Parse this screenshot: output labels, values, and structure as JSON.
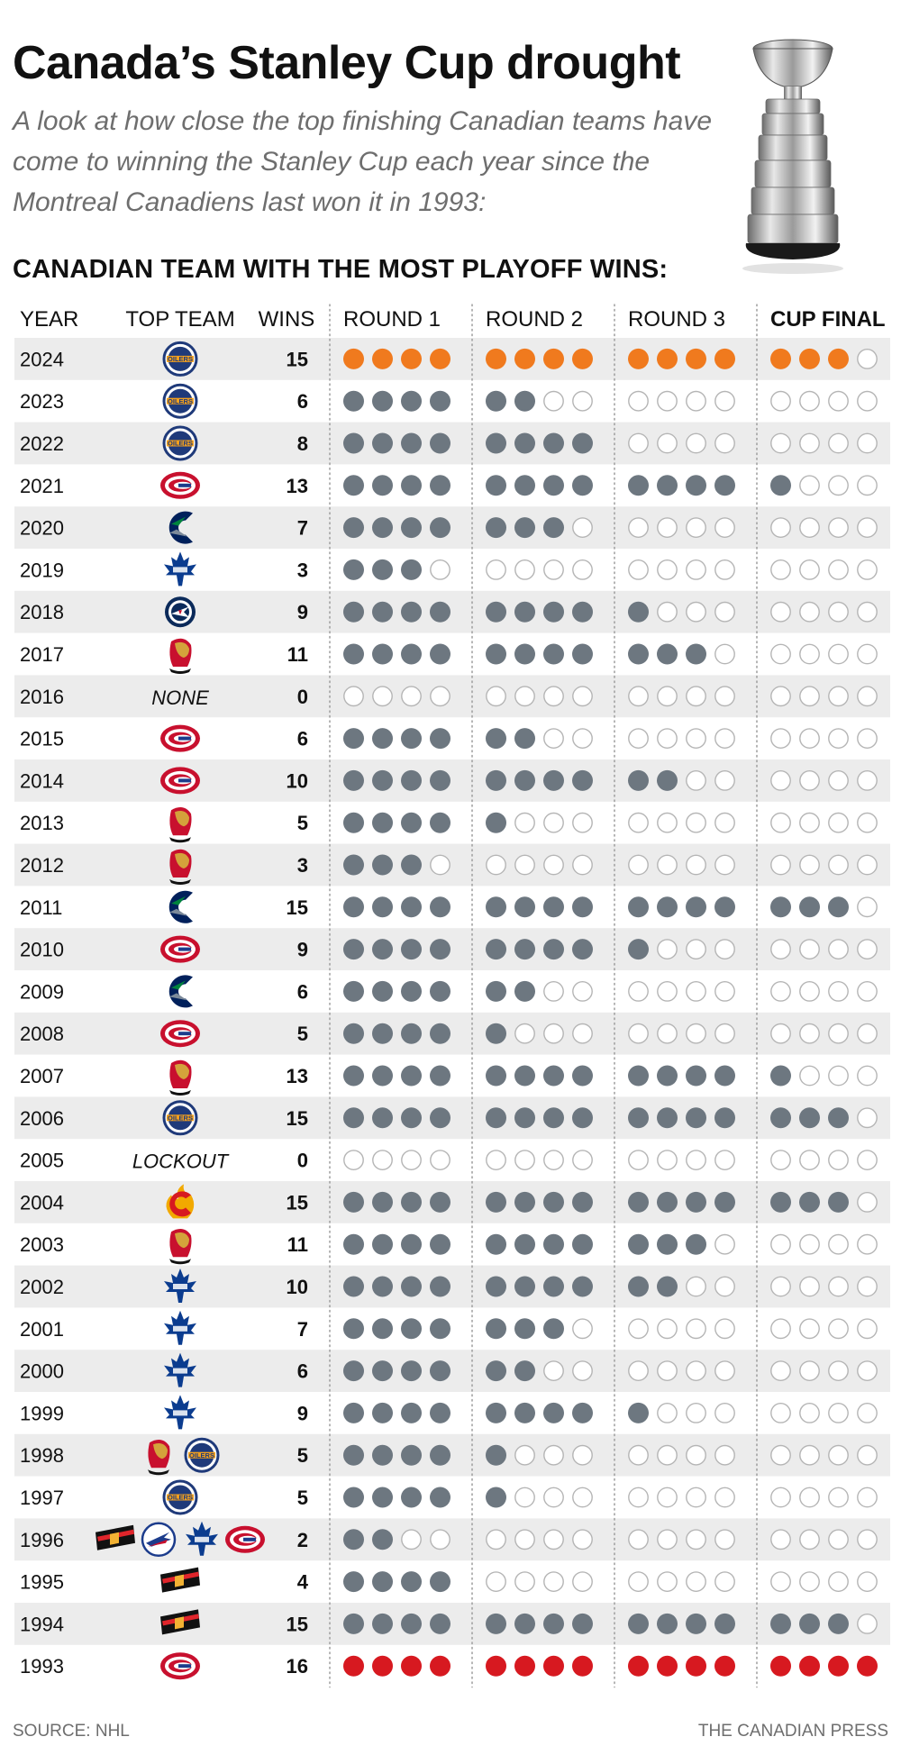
{
  "title": "Canada’s Stanley Cup drought",
  "subtitle": "A look at how close the top finishing Canadian teams have come to winning the Stanley Cup each year since the Montreal Canadiens last won it in 1993:",
  "subhead": "CANADIAN TEAM WITH THE MOST PLAYOFF WINS:",
  "source": "SOURCE: NHL",
  "credit": "THE CANADIAN PRESS",
  "colors": {
    "filled": "#6d7780",
    "current": "#f07a1e",
    "champion": "#d71920",
    "empty_stroke": "#b5b5b5",
    "stripe": "#ececec",
    "text_muted": "#6e6e6e"
  },
  "team_logos": {
    "oilers": {
      "primary": "#1f3a7a",
      "secondary": "#f3a01d",
      "text": "OILERS"
    },
    "canadiens": {
      "primary": "#c8102e",
      "secondary": "#1c3c8c",
      "text": "CH"
    },
    "canucks": {
      "primary": "#00205b",
      "secondary": "#00843d"
    },
    "maple-leafs": {
      "primary": "#0b3c8f",
      "text": "TORONTO MAPLE LEAFS"
    },
    "jets": {
      "primary": "#0b2a5a",
      "secondary": "#c8102e"
    },
    "senators": {
      "primary": "#c8102e",
      "secondary": "#d4a23b"
    },
    "flames": {
      "primary": "#d71920",
      "secondary": "#f2a900"
    },
    "canucks-retro": {
      "primary": "#111111",
      "secondary": "#e0252b"
    },
    "jets-retro": {
      "primary": "#1c3c8c",
      "secondary": "#c8102e"
    }
  },
  "chart_data": {
    "type": "table",
    "columns": [
      "YEAR",
      "TOP TEAM",
      "WINS",
      "ROUND 1",
      "ROUND 2",
      "ROUND 3",
      "CUP FINAL"
    ],
    "highlight_column": "CUP FINAL",
    "max_wins_per_round": 4,
    "rows": [
      {
        "year": "2024",
        "team_icons": [
          "oilers"
        ],
        "wins": 15,
        "rounds": [
          4,
          4,
          4,
          3
        ],
        "status": "current"
      },
      {
        "year": "2023",
        "team_icons": [
          "oilers"
        ],
        "wins": 6,
        "rounds": [
          4,
          2,
          0,
          0
        ]
      },
      {
        "year": "2022",
        "team_icons": [
          "oilers"
        ],
        "wins": 8,
        "rounds": [
          4,
          4,
          0,
          0
        ]
      },
      {
        "year": "2021",
        "team_icons": [
          "canadiens"
        ],
        "wins": 13,
        "rounds": [
          4,
          4,
          4,
          1
        ]
      },
      {
        "year": "2020",
        "team_icons": [
          "canucks"
        ],
        "wins": 7,
        "rounds": [
          4,
          3,
          0,
          0
        ]
      },
      {
        "year": "2019",
        "team_icons": [
          "maple-leafs"
        ],
        "wins": 3,
        "rounds": [
          3,
          0,
          0,
          0
        ]
      },
      {
        "year": "2018",
        "team_icons": [
          "jets"
        ],
        "wins": 9,
        "rounds": [
          4,
          4,
          1,
          0
        ]
      },
      {
        "year": "2017",
        "team_icons": [
          "senators"
        ],
        "wins": 11,
        "rounds": [
          4,
          4,
          3,
          0
        ]
      },
      {
        "year": "2016",
        "team_text": "NONE",
        "team_icons": [],
        "wins": 0,
        "rounds": [
          0,
          0,
          0,
          0
        ]
      },
      {
        "year": "2015",
        "team_icons": [
          "canadiens"
        ],
        "wins": 6,
        "rounds": [
          4,
          2,
          0,
          0
        ]
      },
      {
        "year": "2014",
        "team_icons": [
          "canadiens"
        ],
        "wins": 10,
        "rounds": [
          4,
          4,
          2,
          0
        ]
      },
      {
        "year": "2013",
        "team_icons": [
          "senators"
        ],
        "wins": 5,
        "rounds": [
          4,
          1,
          0,
          0
        ]
      },
      {
        "year": "2012",
        "team_icons": [
          "senators"
        ],
        "wins": 3,
        "rounds": [
          3,
          0,
          0,
          0
        ]
      },
      {
        "year": "2011",
        "team_icons": [
          "canucks"
        ],
        "wins": 15,
        "rounds": [
          4,
          4,
          4,
          3
        ]
      },
      {
        "year": "2010",
        "team_icons": [
          "canadiens"
        ],
        "wins": 9,
        "rounds": [
          4,
          4,
          1,
          0
        ]
      },
      {
        "year": "2009",
        "team_icons": [
          "canucks"
        ],
        "wins": 6,
        "rounds": [
          4,
          2,
          0,
          0
        ]
      },
      {
        "year": "2008",
        "team_icons": [
          "canadiens"
        ],
        "wins": 5,
        "rounds": [
          4,
          1,
          0,
          0
        ]
      },
      {
        "year": "2007",
        "team_icons": [
          "senators"
        ],
        "wins": 13,
        "rounds": [
          4,
          4,
          4,
          1
        ]
      },
      {
        "year": "2006",
        "team_icons": [
          "oilers"
        ],
        "wins": 15,
        "rounds": [
          4,
          4,
          4,
          3
        ]
      },
      {
        "year": "2005",
        "team_text": "LOCKOUT",
        "team_icons": [],
        "wins": 0,
        "rounds": [
          0,
          0,
          0,
          0
        ]
      },
      {
        "year": "2004",
        "team_icons": [
          "flames"
        ],
        "wins": 15,
        "rounds": [
          4,
          4,
          4,
          3
        ]
      },
      {
        "year": "2003",
        "team_icons": [
          "senators"
        ],
        "wins": 11,
        "rounds": [
          4,
          4,
          3,
          0
        ]
      },
      {
        "year": "2002",
        "team_icons": [
          "maple-leafs"
        ],
        "wins": 10,
        "rounds": [
          4,
          4,
          2,
          0
        ]
      },
      {
        "year": "2001",
        "team_icons": [
          "maple-leafs"
        ],
        "wins": 7,
        "rounds": [
          4,
          3,
          0,
          0
        ]
      },
      {
        "year": "2000",
        "team_icons": [
          "maple-leafs"
        ],
        "wins": 6,
        "rounds": [
          4,
          2,
          0,
          0
        ]
      },
      {
        "year": "1999",
        "team_icons": [
          "maple-leafs"
        ],
        "wins": 9,
        "rounds": [
          4,
          4,
          1,
          0
        ]
      },
      {
        "year": "1998",
        "team_icons": [
          "senators",
          "oilers"
        ],
        "wins": 5,
        "rounds": [
          4,
          1,
          0,
          0
        ]
      },
      {
        "year": "1997",
        "team_icons": [
          "oilers"
        ],
        "wins": 5,
        "rounds": [
          4,
          1,
          0,
          0
        ]
      },
      {
        "year": "1996",
        "team_icons": [
          "canucks-retro",
          "jets-retro",
          "maple-leafs",
          "canadiens"
        ],
        "wins": 2,
        "rounds": [
          2,
          0,
          0,
          0
        ]
      },
      {
        "year": "1995",
        "team_icons": [
          "canucks-retro"
        ],
        "wins": 4,
        "rounds": [
          4,
          0,
          0,
          0
        ]
      },
      {
        "year": "1994",
        "team_icons": [
          "canucks-retro"
        ],
        "wins": 15,
        "rounds": [
          4,
          4,
          4,
          3
        ]
      },
      {
        "year": "1993",
        "team_icons": [
          "canadiens"
        ],
        "wins": 16,
        "rounds": [
          4,
          4,
          4,
          4
        ],
        "status": "champion"
      }
    ]
  }
}
